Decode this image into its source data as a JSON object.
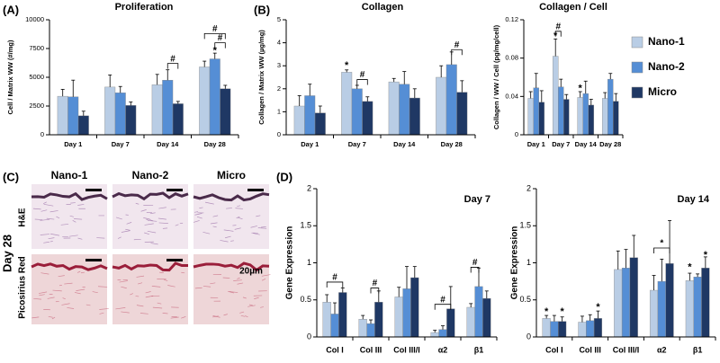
{
  "chart_data": [
    {
      "type": "bar",
      "panel": "(A)",
      "title": "Proliferation",
      "y_label": "Cell / Matrix WW (#/mg)",
      "categories": [
        "Day 1",
        "Day 7",
        "Day 14",
        "Day 28"
      ],
      "series": [
        {
          "color": "#b9cde5",
          "values": [
            3350,
            4150,
            4350,
            5900
          ],
          "errors": [
            600,
            1050,
            900,
            500
          ]
        },
        {
          "color": "#558ed5",
          "values": [
            3300,
            3650,
            4750,
            6600
          ],
          "errors": [
            1450,
            550,
            900,
            500
          ]
        },
        {
          "color": "#1f3864",
          "values": [
            1650,
            2550,
            2700,
            4000
          ],
          "errors": [
            400,
            300,
            200,
            300
          ]
        }
      ],
      "ylim": [
        0,
        10000
      ],
      "yticks": [
        0,
        2500,
        5000,
        7500,
        10000
      ],
      "annotations": [
        "#",
        "*",
        "#",
        "#"
      ]
    },
    {
      "type": "bar",
      "panel": "(B)",
      "title": "Collagen",
      "y_label": "Collagen / Matrix WW (µg/mg)",
      "categories": [
        "Day 1",
        "Day 7",
        "Day 14",
        "Day 28"
      ],
      "series": [
        {
          "color": "#b9cde5",
          "values": [
            1.25,
            2.72,
            2.3,
            2.5
          ],
          "errors": [
            0.45,
            0.1,
            0.15,
            0.5
          ]
        },
        {
          "color": "#558ed5",
          "values": [
            1.7,
            2.0,
            2.2,
            3.05
          ],
          "errors": [
            0.5,
            0.15,
            0.55,
            0.55
          ]
        },
        {
          "color": "#1f3864",
          "values": [
            0.95,
            1.45,
            1.6,
            1.85
          ],
          "errors": [
            0.3,
            0.2,
            0.4,
            0.5
          ]
        }
      ],
      "ylim": [
        0,
        5
      ],
      "yticks": [
        0,
        1,
        2,
        3,
        4,
        5
      ],
      "annotations": [
        "*",
        "#",
        "#"
      ]
    },
    {
      "type": "bar",
      "title": "Collagen / Cell",
      "y_label": "Collagen / WW / Cell  (pg/mg/cell)",
      "categories": [
        "Day 1",
        "Day 7",
        "Day 14",
        "Day 28"
      ],
      "series": [
        {
          "name": "Nano-1",
          "color": "#b9cde5",
          "values": [
            0.038,
            0.082,
            0.039,
            0.038
          ],
          "errors": [
            0.007,
            0.018,
            0.006,
            0.006
          ]
        },
        {
          "name": "Nano-2",
          "color": "#558ed5",
          "values": [
            0.049,
            0.05,
            0.043,
            0.058
          ],
          "errors": [
            0.015,
            0.008,
            0.013,
            0.006
          ]
        },
        {
          "name": "Micro",
          "color": "#1f3864",
          "values": [
            0.034,
            0.037,
            0.031,
            0.035
          ],
          "errors": [
            0.012,
            0.005,
            0.006,
            0.008
          ]
        }
      ],
      "ylim": [
        0,
        0.12
      ],
      "yticks": [
        0,
        0.04,
        0.08,
        0.12
      ],
      "annotations": [
        "*",
        "#",
        "*"
      ]
    },
    {
      "type": "bar",
      "panel": "(D)",
      "title": "Day 7",
      "y_label": "Gene  Expression",
      "categories": [
        "Col I",
        "Col III",
        "Col III/I",
        "α2",
        "β1"
      ],
      "series": [
        {
          "color": "#b9cde5",
          "values": [
            0.47,
            0.24,
            0.54,
            0.06,
            0.4
          ],
          "errors": [
            0.1,
            0.05,
            0.13,
            0.03,
            0.05
          ]
        },
        {
          "color": "#558ed5",
          "values": [
            0.31,
            0.18,
            0.65,
            0.1,
            0.68
          ],
          "errors": [
            0.15,
            0.05,
            0.3,
            0.05,
            0.25
          ]
        },
        {
          "color": "#1f3864",
          "values": [
            0.6,
            0.47,
            0.8,
            0.38,
            0.52
          ],
          "errors": [
            0.06,
            0.15,
            0.15,
            0.3,
            0.1
          ]
        }
      ],
      "ylim": [
        0,
        2
      ],
      "yticks": [
        0,
        0.5,
        1,
        1.5,
        2
      ],
      "annotations": [
        "#",
        "#",
        "#",
        "#"
      ]
    },
    {
      "type": "bar",
      "title": "Day 14",
      "y_label": "Gene Expression",
      "categories": [
        "Col I",
        "Col III",
        "Col III/I",
        "α2",
        "β1"
      ],
      "series": [
        {
          "color": "#b9cde5",
          "values": [
            0.25,
            0.2,
            0.91,
            0.63,
            0.76
          ],
          "errors": [
            0.04,
            0.08,
            0.25,
            0.2,
            0.1
          ]
        },
        {
          "color": "#558ed5",
          "values": [
            0.21,
            0.22,
            0.93,
            0.75,
            0.81
          ],
          "errors": [
            0.08,
            0.08,
            0.25,
            0.3,
            0.04
          ]
        },
        {
          "color": "#1f3864",
          "values": [
            0.21,
            0.25,
            1.07,
            0.99,
            0.93
          ],
          "errors": [
            0.06,
            0.1,
            0.3,
            0.58,
            0.15
          ]
        }
      ],
      "ylim": [
        0,
        2
      ],
      "yticks": [
        0,
        0.5,
        1,
        1.5,
        2
      ],
      "annotations": [
        "*",
        "*",
        "*",
        "*",
        "*",
        "*"
      ]
    }
  ],
  "image_panel": {
    "label": "(C)",
    "columns": [
      "Nano-1",
      "Nano-2",
      "Micro"
    ],
    "rows": [
      "H&E",
      "Picosirius Red"
    ],
    "group": "Day 28",
    "scale_bar": "20µm"
  }
}
